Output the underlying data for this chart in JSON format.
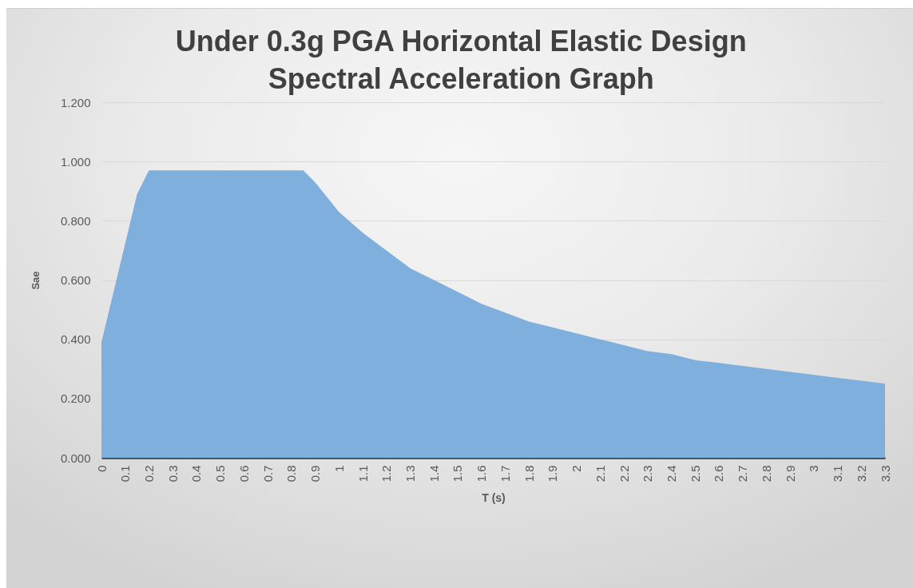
{
  "chart_data": {
    "type": "area",
    "title": "Under 0.3g PGA Horizontal Elastic Design Spectral Acceleration Graph",
    "xlabel": "T (s)",
    "ylabel": "Sae",
    "x": [
      0,
      0.15,
      0.2,
      0.3,
      0.4,
      0.5,
      0.6,
      0.7,
      0.8,
      0.85,
      0.9,
      1,
      1.1,
      1.2,
      1.3,
      1.4,
      1.5,
      1.6,
      1.7,
      1.8,
      1.9,
      2,
      2.1,
      2.2,
      2.3,
      2.4,
      2.5,
      2.6,
      2.7,
      2.8,
      2.9,
      3,
      3.1,
      3.2,
      3.3
    ],
    "values": [
      0.39,
      0.89,
      0.97,
      0.97,
      0.97,
      0.97,
      0.97,
      0.97,
      0.97,
      0.97,
      0.93,
      0.83,
      0.76,
      0.7,
      0.64,
      0.6,
      0.56,
      0.52,
      0.49,
      0.46,
      0.44,
      0.42,
      0.4,
      0.38,
      0.36,
      0.35,
      0.33,
      0.32,
      0.31,
      0.3,
      0.29,
      0.28,
      0.27,
      0.26,
      0.25
    ],
    "color": "#7fafdc",
    "xlim": [
      0,
      3.3
    ],
    "xticks": [
      0,
      0.1,
      0.2,
      0.3,
      0.4,
      0.5,
      0.6,
      0.7,
      0.8,
      0.9,
      1,
      1.1,
      1.2,
      1.3,
      1.4,
      1.5,
      1.6,
      1.7,
      1.8,
      1.9,
      2,
      2.1,
      2.2,
      2.3,
      2.4,
      2.5,
      2.6,
      2.7,
      2.8,
      2.9,
      3,
      3.1,
      3.2,
      3.3
    ],
    "ylim": [
      0,
      1.2
    ],
    "yticks": [
      {
        "value": 0,
        "label": "0.000"
      },
      {
        "value": 0.2,
        "label": "0.200"
      },
      {
        "value": 0.4,
        "label": "0.400"
      },
      {
        "value": 0.6,
        "label": "0.600"
      },
      {
        "value": 0.8,
        "label": "0.800"
      },
      {
        "value": 1,
        "label": "1.000"
      },
      {
        "value": 1.2,
        "label": "1.200"
      }
    ],
    "grid": "y"
  }
}
